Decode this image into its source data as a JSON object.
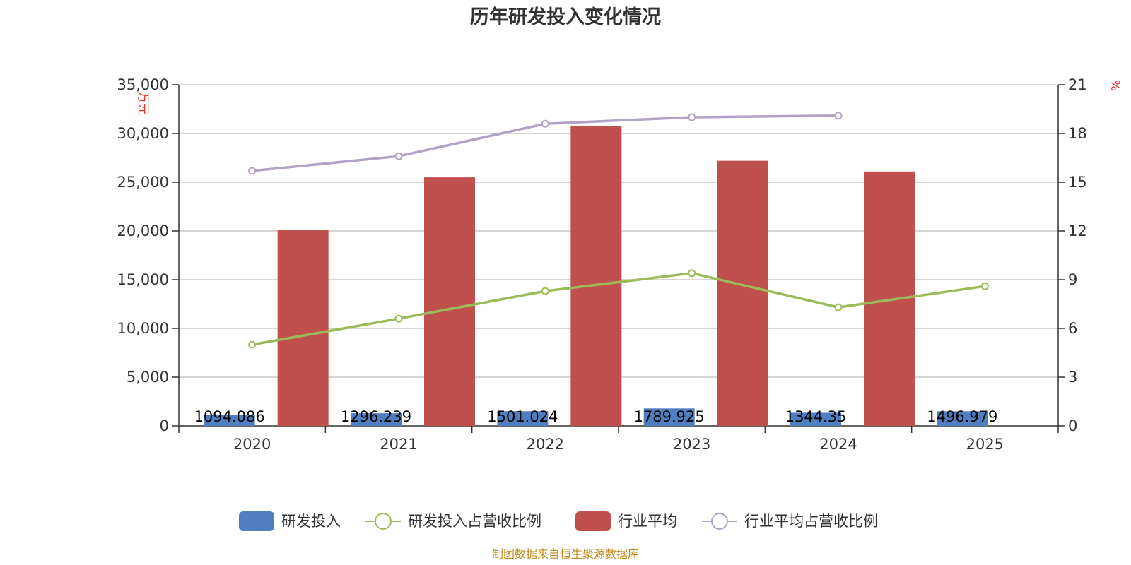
{
  "chart_data": {
    "type": "bar",
    "title": "历年研发投入变化情况",
    "categories": [
      "2020",
      "2021",
      "2022",
      "2023",
      "2024",
      "2025"
    ],
    "y_left": {
      "unit": "万元",
      "ylim": [
        0,
        35000
      ],
      "ticks": [
        0,
        5000,
        10000,
        15000,
        20000,
        25000,
        30000,
        35000
      ],
      "tick_labels": [
        "0",
        "5,000",
        "10,000",
        "15,000",
        "20,000",
        "25,000",
        "30,000",
        "35,000"
      ]
    },
    "y_right": {
      "unit": "%",
      "ylim": [
        0,
        21
      ],
      "ticks": [
        0,
        3,
        6,
        9,
        12,
        15,
        18,
        21
      ]
    },
    "series": [
      {
        "name": "研发投入",
        "kind": "bar",
        "axis": "left",
        "color": "#4f7fc0",
        "values": [
          1094.086,
          1296.239,
          1501.024,
          1789.925,
          1344.35,
          1496.979
        ],
        "labels": [
          "1094.086",
          "1296.239",
          "1501.024",
          "1789.925",
          "1344.35",
          "1496.979"
        ]
      },
      {
        "name": "研发投入占营收比例",
        "kind": "line",
        "axis": "right",
        "color": "#9bbb59",
        "values": [
          5.0,
          6.6,
          8.3,
          9.4,
          7.3,
          8.6
        ]
      },
      {
        "name": "行业平均",
        "kind": "bar",
        "axis": "left",
        "color": "#c0504d",
        "values": [
          20100,
          25500,
          30800,
          27200,
          26100,
          null
        ]
      },
      {
        "name": "行业平均占营收比例",
        "kind": "line",
        "axis": "right",
        "color": "#b3a2c7",
        "values": [
          15.7,
          16.6,
          18.6,
          19.0,
          19.1,
          null
        ]
      }
    ],
    "grid": true,
    "legend_position": "bottom"
  },
  "footer": {
    "source": "制图数据来自恒生聚源数据库"
  }
}
